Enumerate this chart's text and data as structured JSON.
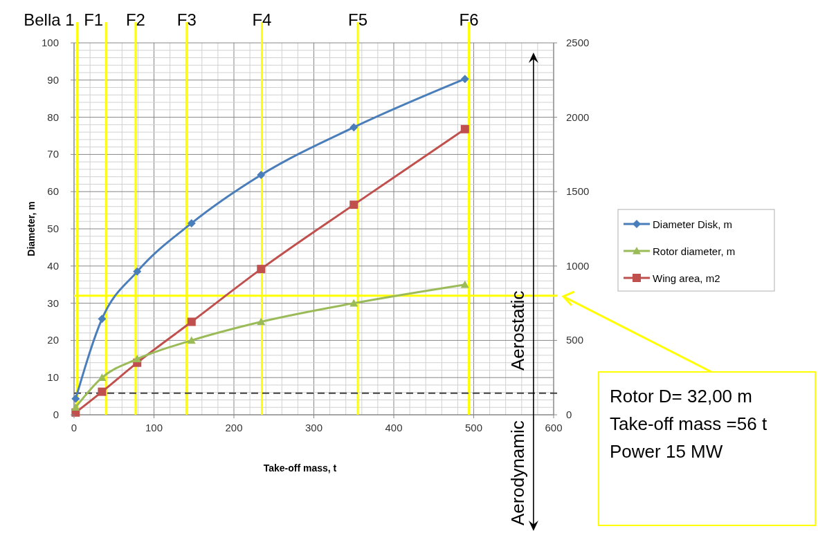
{
  "chart_data": {
    "type": "line",
    "xlabel": "Take-off mass, t",
    "ylabel": "Diameter, m",
    "xlim": [
      0,
      600
    ],
    "xticks": [
      0,
      100,
      200,
      300,
      400,
      500,
      600
    ],
    "ylim": [
      0,
      100
    ],
    "yticks": [
      0,
      10,
      20,
      30,
      40,
      50,
      60,
      70,
      80,
      90,
      100
    ],
    "y2lim": [
      0,
      2500
    ],
    "y2ticks": [
      0,
      500,
      1000,
      1500,
      2000,
      2500
    ],
    "grid": true,
    "legend": "right",
    "series": [
      {
        "name": "Diameter Disk, m",
        "color": "#4a7ebb",
        "marker": "diamond",
        "x": [
          2,
          35,
          79,
          147,
          234,
          350,
          489
        ],
        "values": [
          4.3,
          25.8,
          38.5,
          51.5,
          64.5,
          77.3,
          90.3
        ]
      },
      {
        "name": "Rotor diameter, m",
        "color": "#9bbb59",
        "marker": "triangle",
        "x": [
          2,
          35,
          79,
          147,
          234,
          350,
          489
        ],
        "values": [
          2,
          10,
          15,
          20,
          25,
          30,
          35
        ]
      },
      {
        "name": "Wing area, m2",
        "color": "#c0504d",
        "marker": "square",
        "axis": "y2",
        "x": [
          2,
          35,
          79,
          147,
          234,
          350,
          489
        ],
        "values": [
          15,
          155,
          350,
          625,
          980,
          1412,
          1920
        ]
      }
    ],
    "ref_lines": [
      {
        "axis": "x",
        "value": 4,
        "label": "Bella 1",
        "color": "#ffff00"
      },
      {
        "axis": "x",
        "value": 40,
        "label": "F1",
        "color": "#ffff00"
      },
      {
        "axis": "x",
        "value": 77,
        "label": "F2",
        "color": "#ffff00"
      },
      {
        "axis": "x",
        "value": 141,
        "label": "F3",
        "color": "#ffff00"
      },
      {
        "axis": "x",
        "value": 235,
        "label": "F4",
        "color": "#ffff00"
      },
      {
        "axis": "x",
        "value": 355,
        "label": "F5",
        "color": "#ffff00"
      },
      {
        "axis": "x",
        "value": 494,
        "label": "F6",
        "color": "#ffff00"
      },
      {
        "axis": "y",
        "value": 32,
        "color": "#ffff00"
      },
      {
        "axis": "y",
        "value": 5.8,
        "color": "#404040",
        "line_style": "dashed"
      }
    ],
    "annotations": [
      "Aerostatic",
      "Aerodynamic",
      "Rotor D= 32,00 m",
      "Take-off mass =56 t",
      "Power 15 MW"
    ]
  }
}
